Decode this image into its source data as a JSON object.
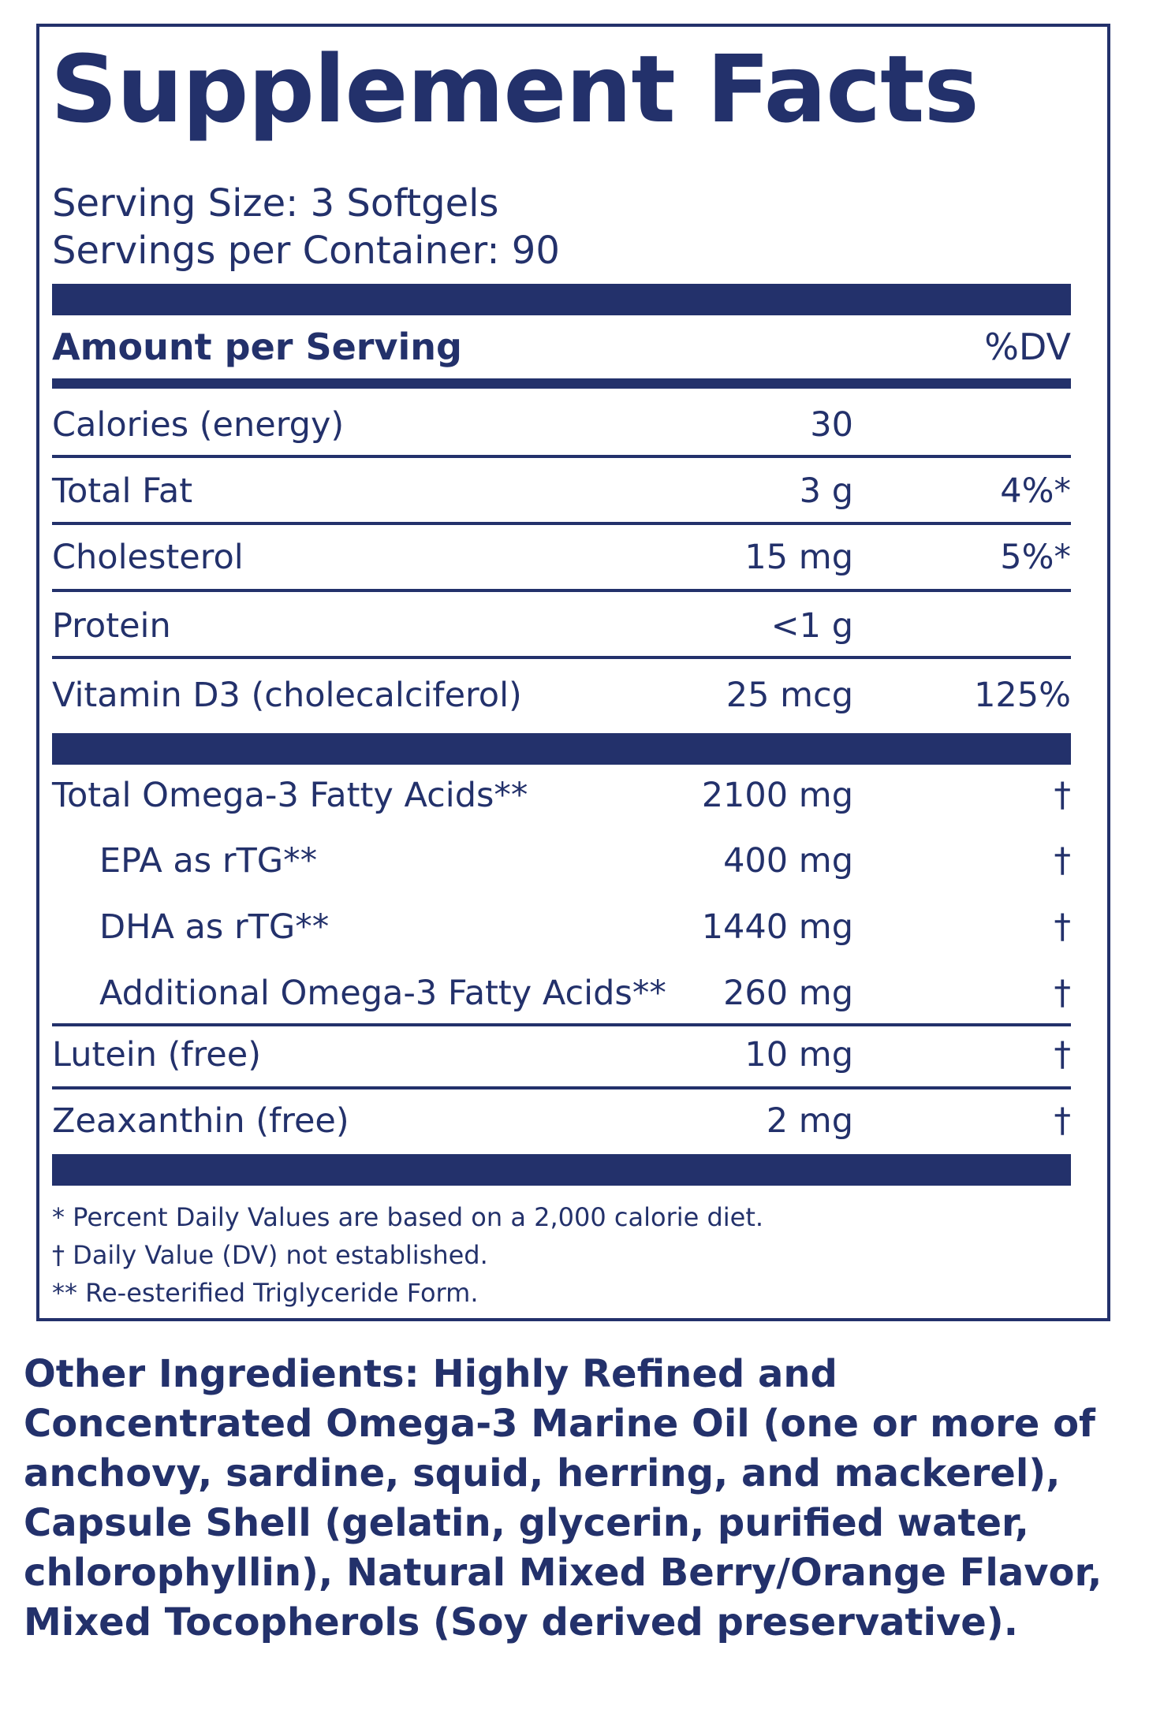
{
  "title": "Supplement Facts",
  "serving_size": "Serving Size: 3 Softgels",
  "servings_per_container": "Servings per Container: 90",
  "header": {
    "amount_label": "Amount per Serving",
    "dv_label": "%DV"
  },
  "nutrients": [
    {
      "name": "Calories (energy)",
      "amount": "30",
      "dv": ""
    },
    {
      "name": "Total Fat",
      "amount": "3 g",
      "dv": "4%*"
    },
    {
      "name": "Cholesterol",
      "amount": "15 mg",
      "dv": "5%*"
    },
    {
      "name": "Protein",
      "amount": "<1 g",
      "dv": ""
    },
    {
      "name": "Vitamin D3 (cholecalciferol)",
      "amount": "25 mcg",
      "dv": "125%"
    }
  ],
  "omega": [
    {
      "name": "Total Omega-3 Fatty Acids**",
      "amount": "2100 mg",
      "dv": "†"
    },
    {
      "name": "EPA as rTG**",
      "amount": "400 mg",
      "dv": "†"
    },
    {
      "name": "DHA as rTG**",
      "amount": "1440 mg",
      "dv": "†"
    },
    {
      "name": "Additional Omega-3 Fatty Acids**",
      "amount": "260 mg",
      "dv": "†"
    },
    {
      "name": "Lutein (free)",
      "amount": "10 mg",
      "dv": "†"
    },
    {
      "name": "Zeaxanthin (free)",
      "amount": "2 mg",
      "dv": "†"
    }
  ],
  "footnotes": [
    "* Percent Daily Values are based on a 2,000 calorie diet.",
    "† Daily Value (DV) not established.",
    "** Re-esterified Triglyceride Form."
  ],
  "other_ingredients": "Other Ingredients: Highly Refined and Concentrated Omega-3 Marine Oil (one or more of anchovy, sardine, squid, herring, and mackerel), Capsule Shell (gelatin, glycerin, purified water, chlorophyllin), Natural Mixed Berry/Orange Flavor, Mixed Tocopherols (Soy derived preservative).",
  "colors": {
    "ink": "#23316b",
    "background": "#ffffff"
  }
}
